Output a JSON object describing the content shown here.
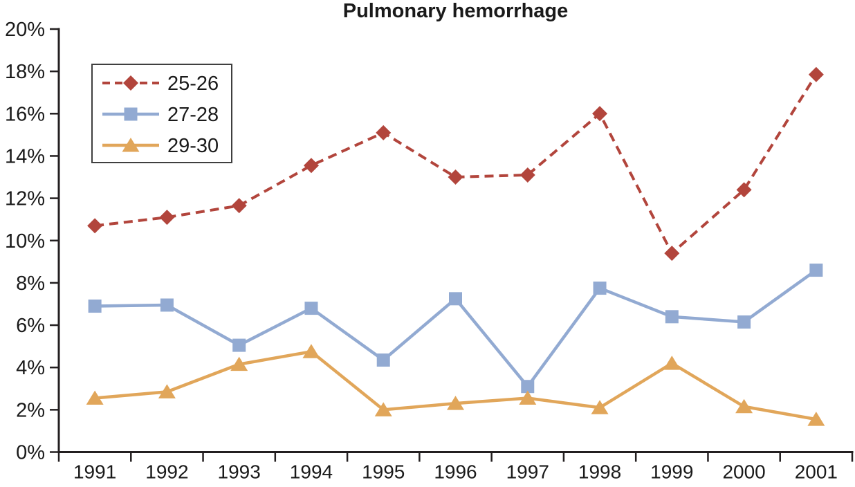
{
  "chart_data": {
    "type": "line",
    "title": "Pulmonary hemorrhage",
    "xlabel": "",
    "ylabel": "",
    "categories": [
      "1991",
      "1992",
      "1993",
      "1994",
      "1995",
      "1996",
      "1997",
      "1998",
      "1999",
      "2000",
      "2001"
    ],
    "ylim": [
      0,
      20
    ],
    "y_tick_step": 2,
    "y_tick_labels": [
      "0%",
      "2%",
      "4%",
      "6%",
      "8%",
      "10%",
      "12%",
      "14%",
      "16%",
      "18%",
      "20%"
    ],
    "grid": false,
    "legend_position": "upper-left-inside",
    "series": [
      {
        "name": "25-26",
        "color": "#b2453c",
        "line_style": "dashed",
        "marker": "diamond",
        "values": [
          10.7,
          11.1,
          11.65,
          13.55,
          15.1,
          13.0,
          13.1,
          16.0,
          9.4,
          12.4,
          17.85
        ]
      },
      {
        "name": "27-28",
        "color": "#92aad2",
        "line_style": "solid",
        "marker": "square",
        "values": [
          6.9,
          6.95,
          5.05,
          6.8,
          4.35,
          7.25,
          3.1,
          7.75,
          6.4,
          6.15,
          8.6
        ]
      },
      {
        "name": "29-30",
        "color": "#e1a65a",
        "line_style": "solid",
        "marker": "triangle",
        "values": [
          2.55,
          2.85,
          4.15,
          4.75,
          2.0,
          2.3,
          2.55,
          2.1,
          4.2,
          2.15,
          1.55
        ]
      }
    ],
    "axis_color": "#231f20",
    "text_color": "#1a1a1a",
    "background": "#ffffff"
  }
}
